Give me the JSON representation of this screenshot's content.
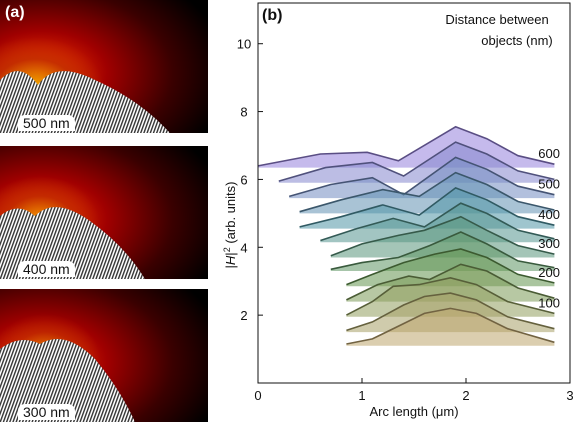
{
  "panel_a": {
    "label": "(a)",
    "simulations": [
      {
        "distance_label": "500 nm"
      },
      {
        "distance_label": "400 nm"
      },
      {
        "distance_label": "300 nm"
      }
    ]
  },
  "chart_data": {
    "type": "area",
    "panel_label": "(b)",
    "xlabel": "Arc length (μm)",
    "ylabel_parts": [
      "|",
      "H",
      "|",
      "2",
      " (arb. units)"
    ],
    "xlim": [
      0,
      3
    ],
    "ylim": [
      0,
      11.2
    ],
    "xticks": [
      0,
      1,
      2,
      3
    ],
    "yticks": [
      2,
      4,
      6,
      8,
      10
    ],
    "legend_title_lines": [
      "Distance between",
      "objects (nm)"
    ],
    "series_labels": [
      {
        "text": "100",
        "offset": 2.0
      },
      {
        "text": "200",
        "offset": 4.0
      },
      {
        "text": "300",
        "offset": 6.0
      },
      {
        "text": "400",
        "offset": 8.0
      },
      {
        "text": "500",
        "offset": 10.0
      },
      {
        "text": "600",
        "offset": 12.0
      }
    ],
    "curves": [
      {
        "offset": 0.0,
        "x": [
          0.85,
          1.1,
          1.4,
          1.6,
          1.85,
          2.1,
          2.4,
          2.85
        ],
        "y": [
          1.15,
          1.3,
          1.75,
          2.05,
          2.2,
          2.05,
          1.6,
          1.2
        ]
      },
      {
        "offset": 1.0,
        "x": [
          0.85,
          1.1,
          1.4,
          1.6,
          1.85,
          2.1,
          2.4,
          2.85
        ],
        "y": [
          1.55,
          1.8,
          2.3,
          2.55,
          2.65,
          2.45,
          1.95,
          1.6
        ]
      },
      {
        "offset": 2.0,
        "x": [
          0.85,
          1.1,
          1.3,
          1.55,
          1.85,
          2.1,
          2.4,
          2.85
        ],
        "y": [
          2.0,
          2.4,
          2.85,
          2.9,
          3.1,
          2.9,
          2.4,
          2.05
        ]
      },
      {
        "offset": 3.0,
        "x": [
          0.85,
          1.15,
          1.45,
          1.65,
          1.95,
          2.2,
          2.5,
          2.85
        ],
        "y": [
          2.45,
          2.9,
          3.15,
          3.05,
          3.5,
          3.3,
          2.8,
          2.5
        ]
      },
      {
        "offset": 4.0,
        "x": [
          0.85,
          1.1,
          1.4,
          1.7,
          1.95,
          2.2,
          2.5,
          2.85
        ],
        "y": [
          2.9,
          3.2,
          3.55,
          3.8,
          3.95,
          3.7,
          3.2,
          2.95
        ]
      },
      {
        "offset": 5.0,
        "x": [
          0.7,
          1.0,
          1.35,
          1.65,
          1.95,
          2.2,
          2.5,
          2.85
        ],
        "y": [
          3.35,
          3.55,
          3.7,
          4.05,
          4.45,
          4.1,
          3.6,
          3.4
        ]
      },
      {
        "offset": 6.0,
        "x": [
          0.7,
          1.0,
          1.35,
          1.6,
          1.95,
          2.2,
          2.5,
          2.85
        ],
        "y": [
          3.75,
          4.1,
          4.35,
          4.5,
          4.9,
          4.5,
          4.05,
          3.8
        ]
      },
      {
        "offset": 7.0,
        "x": [
          0.6,
          0.95,
          1.3,
          1.6,
          1.95,
          2.2,
          2.5,
          2.85
        ],
        "y": [
          4.2,
          4.55,
          4.85,
          4.6,
          5.3,
          5.0,
          4.5,
          4.25
        ]
      },
      {
        "offset": 8.0,
        "x": [
          0.4,
          0.8,
          1.2,
          1.55,
          1.9,
          2.2,
          2.5,
          2.85
        ],
        "y": [
          4.6,
          4.9,
          5.25,
          4.95,
          5.75,
          5.4,
          4.9,
          4.65
        ]
      },
      {
        "offset": 9.0,
        "x": [
          0.4,
          0.8,
          1.2,
          1.55,
          1.9,
          2.2,
          2.5,
          2.85
        ],
        "y": [
          5.05,
          5.4,
          5.7,
          5.5,
          6.2,
          5.85,
          5.35,
          5.1
        ]
      },
      {
        "offset": 10.0,
        "x": [
          0.3,
          0.7,
          1.1,
          1.4,
          1.9,
          2.2,
          2.5,
          2.85
        ],
        "y": [
          5.5,
          5.85,
          6.05,
          5.55,
          6.65,
          6.3,
          5.8,
          5.55
        ]
      },
      {
        "offset": 11.0,
        "x": [
          0.2,
          0.65,
          1.1,
          1.4,
          1.9,
          2.2,
          2.5,
          2.85
        ],
        "y": [
          5.95,
          6.35,
          6.5,
          6.1,
          7.1,
          6.75,
          6.25,
          6.0
        ]
      },
      {
        "offset": 12.0,
        "x": [
          0.0,
          0.6,
          1.05,
          1.35,
          1.9,
          2.2,
          2.5,
          2.85
        ],
        "y": [
          6.4,
          6.75,
          6.8,
          6.55,
          7.55,
          7.2,
          6.7,
          6.45
        ]
      }
    ]
  }
}
